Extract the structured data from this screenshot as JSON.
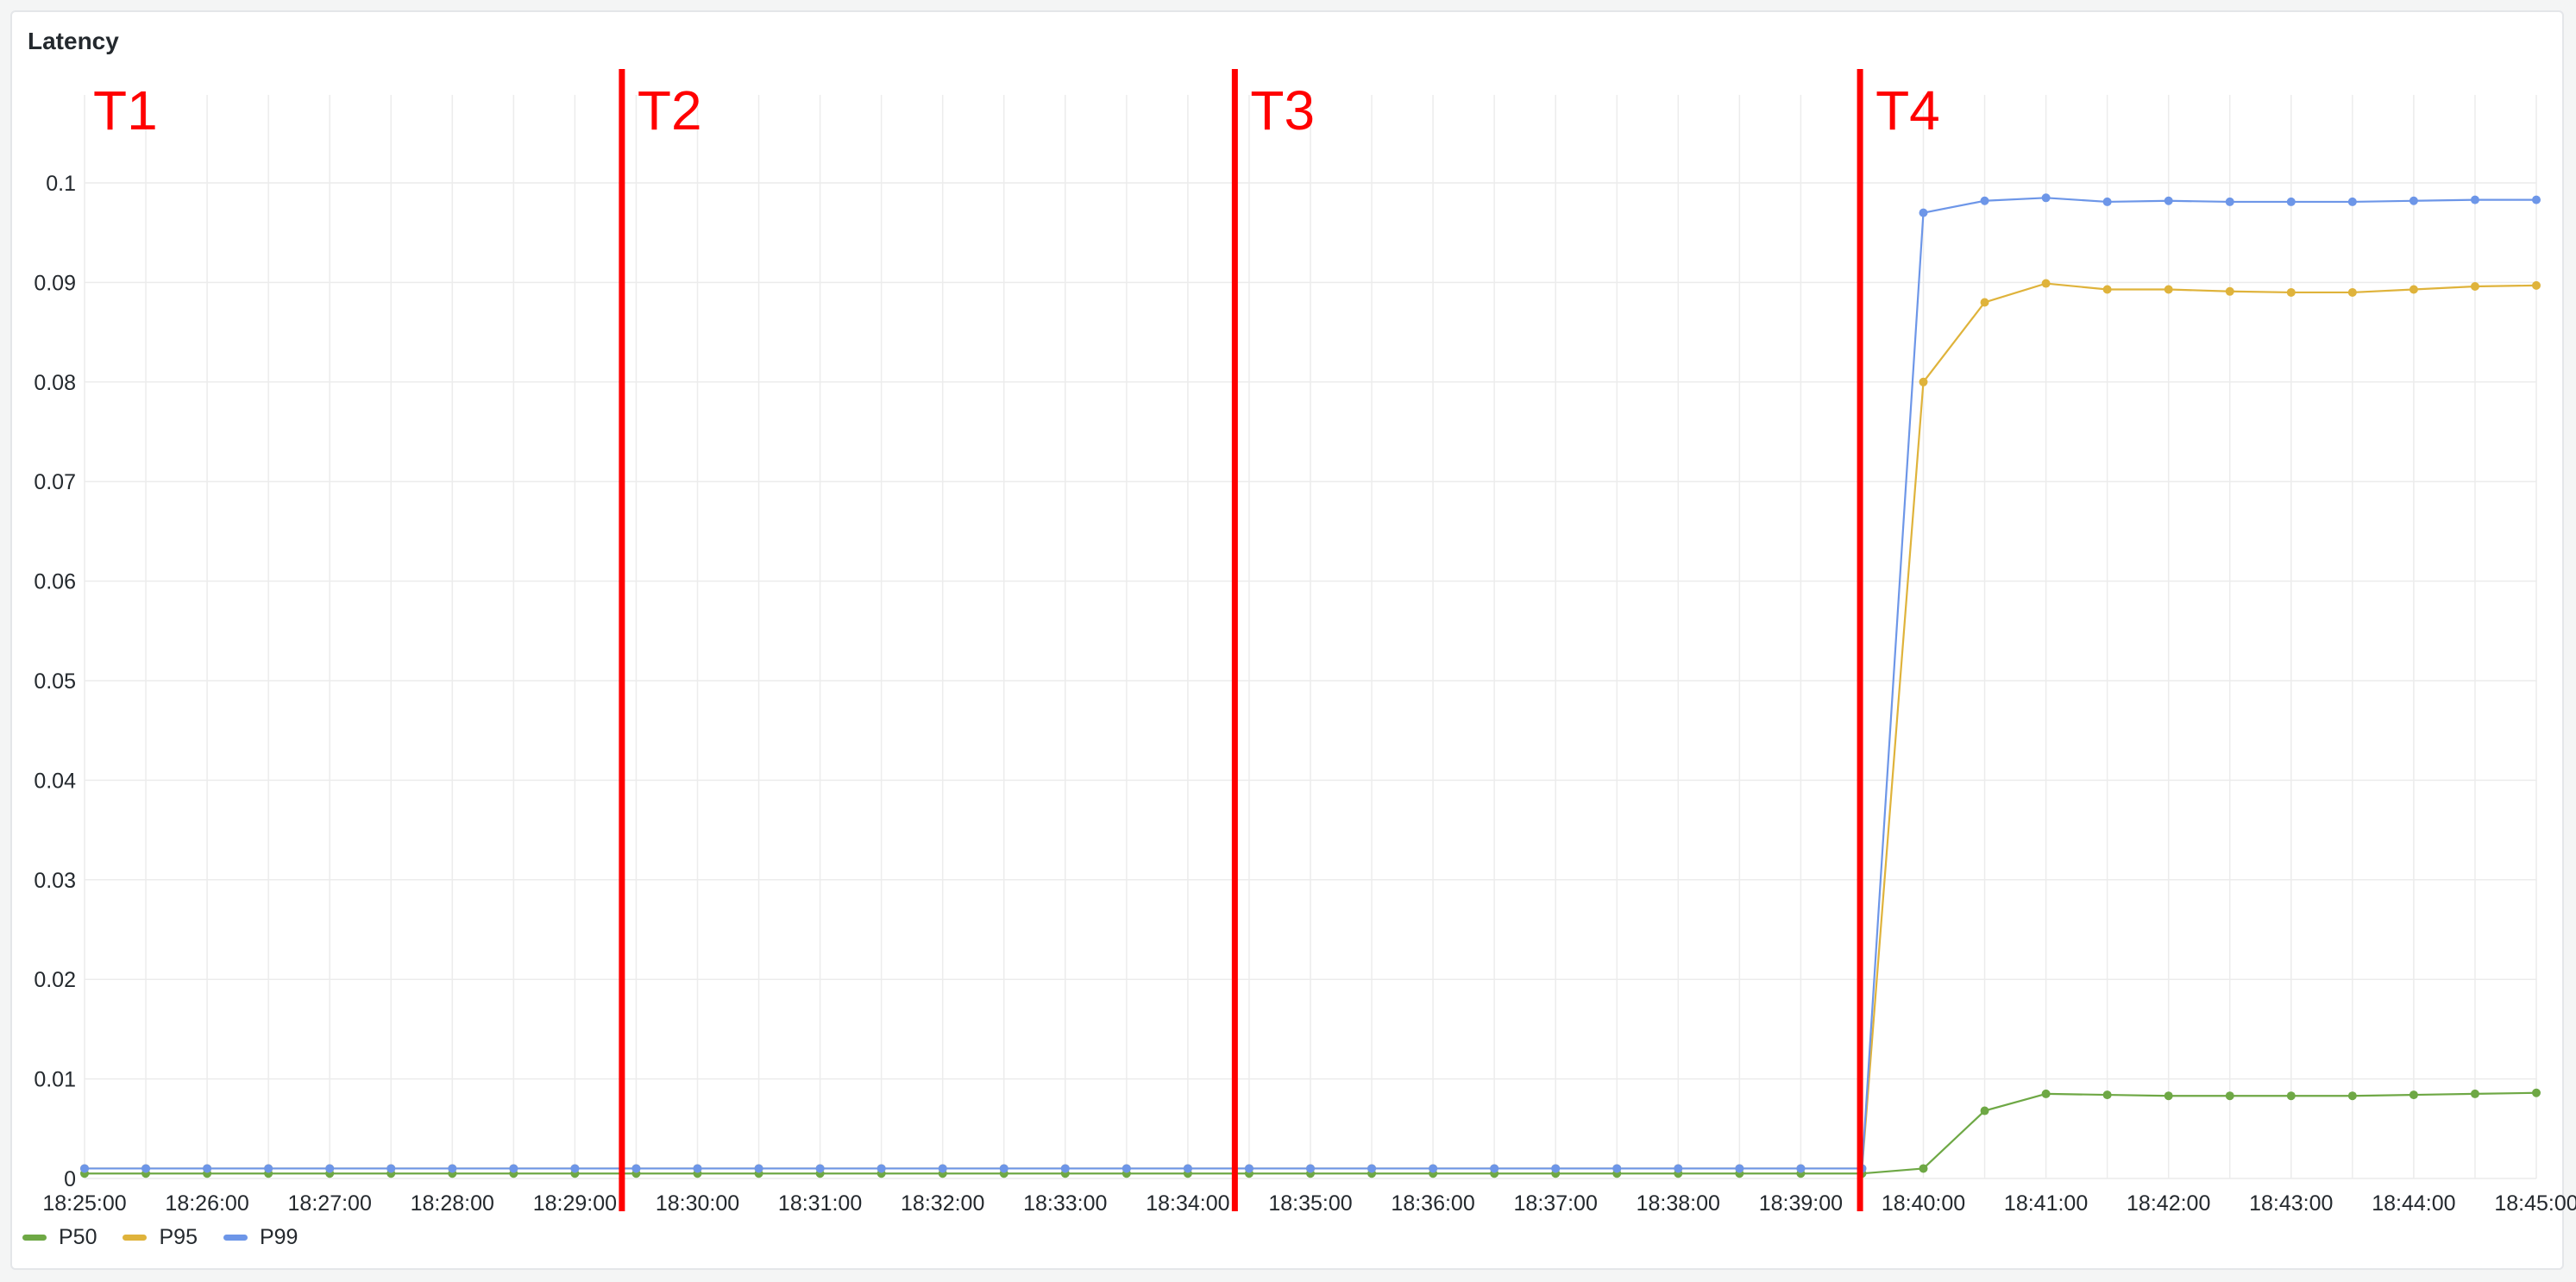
{
  "panel": {
    "title": "Latency"
  },
  "colors": {
    "p50": "#6ea845",
    "p95": "#dfb33b",
    "p99": "#6d96e8",
    "marker": "#ff0000",
    "grid": "#ececec"
  },
  "chart_data": {
    "type": "line",
    "title": "Latency",
    "xlabel": "",
    "ylabel": "",
    "ylim": [
      0,
      0.1
    ],
    "yticks": [
      "0",
      "0.01",
      "0.02",
      "0.03",
      "0.04",
      "0.05",
      "0.06",
      "0.07",
      "0.08",
      "0.09",
      "0.1"
    ],
    "xticks": [
      "18:25:00",
      "18:26:00",
      "18:27:00",
      "18:28:00",
      "18:29:00",
      "18:30:00",
      "18:31:00",
      "18:32:00",
      "18:33:00",
      "18:34:00",
      "18:35:00",
      "18:36:00",
      "18:37:00",
      "18:38:00",
      "18:39:00",
      "18:40:00",
      "18:41:00",
      "18:42:00",
      "18:43:00",
      "18:44:00",
      "18:45:00"
    ],
    "x": [
      "18:25:00",
      "18:25:30",
      "18:26:00",
      "18:26:30",
      "18:27:00",
      "18:27:30",
      "18:28:00",
      "18:28:30",
      "18:29:00",
      "18:29:30",
      "18:30:00",
      "18:30:30",
      "18:31:00",
      "18:31:30",
      "18:32:00",
      "18:32:30",
      "18:33:00",
      "18:33:30",
      "18:34:00",
      "18:34:30",
      "18:35:00",
      "18:35:30",
      "18:36:00",
      "18:36:30",
      "18:37:00",
      "18:37:30",
      "18:38:00",
      "18:38:30",
      "18:39:00",
      "18:39:30",
      "18:40:00",
      "18:40:30",
      "18:41:00",
      "18:41:30",
      "18:42:00",
      "18:42:30",
      "18:43:00",
      "18:43:30",
      "18:44:00",
      "18:44:30",
      "18:45:00"
    ],
    "series": [
      {
        "name": "P50",
        "color": "#6ea845",
        "values": [
          0.0005,
          0.0005,
          0.0005,
          0.0005,
          0.0005,
          0.0005,
          0.0005,
          0.0005,
          0.0005,
          0.0005,
          0.0005,
          0.0005,
          0.0005,
          0.0005,
          0.0005,
          0.0005,
          0.0005,
          0.0005,
          0.0005,
          0.0005,
          0.0005,
          0.0005,
          0.0005,
          0.0005,
          0.0005,
          0.0005,
          0.0005,
          0.0005,
          0.0005,
          0.0005,
          0.001,
          0.0068,
          0.0085,
          0.0084,
          0.0083,
          0.0083,
          0.0083,
          0.0083,
          0.0084,
          0.0085,
          0.0086
        ]
      },
      {
        "name": "P95",
        "color": "#dfb33b",
        "values": [
          0.001,
          0.001,
          0.001,
          0.001,
          0.001,
          0.001,
          0.001,
          0.001,
          0.001,
          0.001,
          0.001,
          0.001,
          0.001,
          0.001,
          0.001,
          0.001,
          0.001,
          0.001,
          0.001,
          0.001,
          0.001,
          0.001,
          0.001,
          0.001,
          0.001,
          0.001,
          0.001,
          0.001,
          0.001,
          0.001,
          0.08,
          0.088,
          0.0899,
          0.0893,
          0.0893,
          0.0891,
          0.089,
          0.089,
          0.0893,
          0.0896,
          0.0897
        ]
      },
      {
        "name": "P99",
        "color": "#6d96e8",
        "values": [
          0.001,
          0.001,
          0.001,
          0.001,
          0.001,
          0.001,
          0.001,
          0.001,
          0.001,
          0.001,
          0.001,
          0.001,
          0.001,
          0.001,
          0.001,
          0.001,
          0.001,
          0.001,
          0.001,
          0.001,
          0.001,
          0.001,
          0.001,
          0.001,
          0.001,
          0.001,
          0.001,
          0.001,
          0.001,
          0.001,
          0.097,
          0.0982,
          0.0985,
          0.0981,
          0.0982,
          0.0981,
          0.0981,
          0.0981,
          0.0982,
          0.0983,
          0.0983
        ]
      }
    ],
    "markers": [
      {
        "label": "T1",
        "time": "18:25:00"
      },
      {
        "label": "T2",
        "time": "18:29:23"
      },
      {
        "label": "T3",
        "time": "18:34:23"
      },
      {
        "label": "T4",
        "time": "18:39:29"
      }
    ],
    "grid": true,
    "legend": "bottom-left"
  }
}
